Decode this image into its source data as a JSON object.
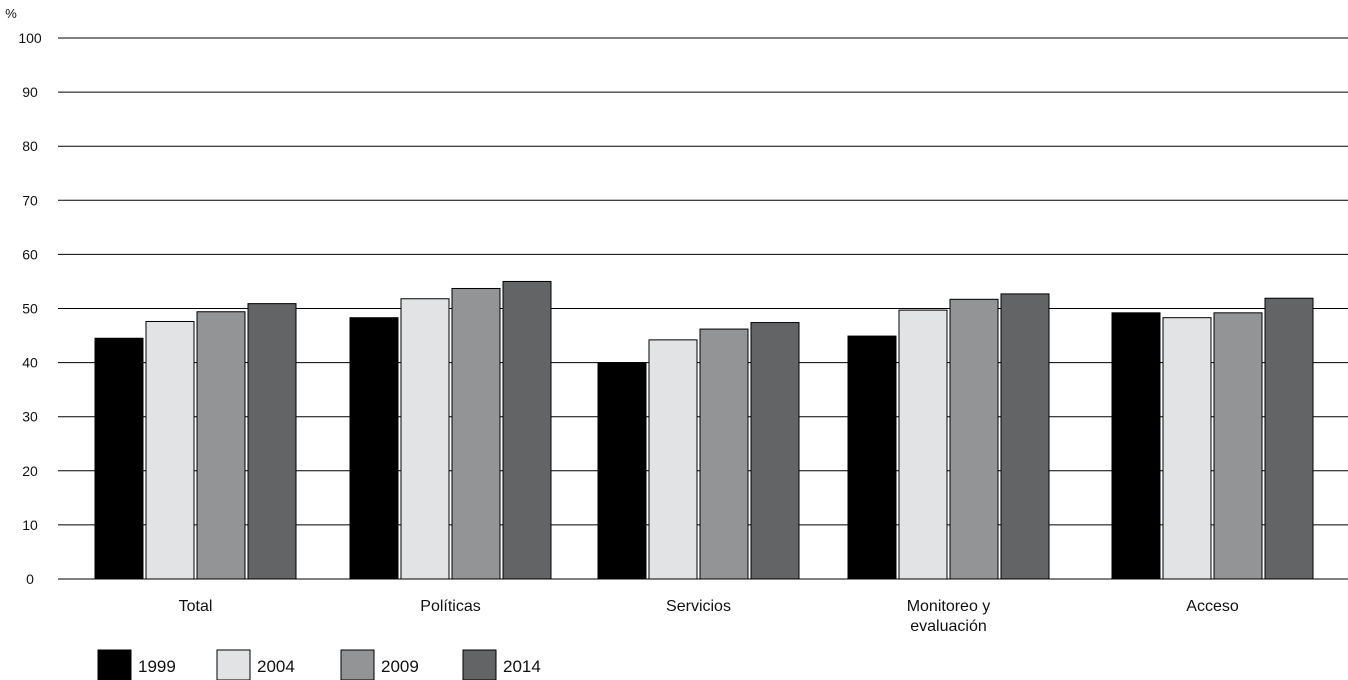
{
  "chart_data": {
    "type": "bar",
    "title": "",
    "xlabel": "",
    "ylabel": "%",
    "ylim": [
      0,
      100
    ],
    "yticks": [
      "0",
      "10",
      "20",
      "30",
      "40",
      "50",
      "60",
      "70",
      "80",
      "90",
      "100"
    ],
    "grid": true,
    "legend_position": "bottom-left",
    "categories": [
      [
        "Total"
      ],
      [
        "Políticas"
      ],
      [
        "Servicios"
      ],
      [
        "Monitoreo y",
        "evaluación"
      ],
      [
        "Acceso"
      ]
    ],
    "series": [
      {
        "name": "1999",
        "color": "#000000",
        "values": [
          44.5,
          48.3,
          40.0,
          44.9,
          49.2
        ]
      },
      {
        "name": "2004",
        "color": "#e2e3e4",
        "values": [
          47.6,
          51.8,
          44.2,
          49.7,
          48.3
        ]
      },
      {
        "name": "2009",
        "color": "#939496",
        "values": [
          49.4,
          53.7,
          46.2,
          51.7,
          49.2
        ]
      },
      {
        "name": "2014",
        "color": "#636466",
        "values": [
          50.9,
          55.0,
          47.4,
          52.7,
          51.9
        ]
      }
    ]
  }
}
